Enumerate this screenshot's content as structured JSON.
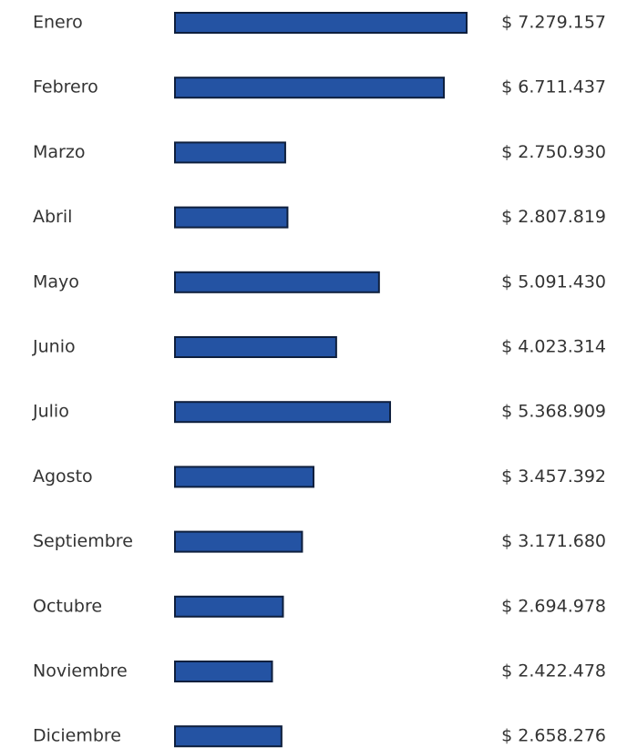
{
  "chart_data": {
    "type": "bar",
    "orientation": "horizontal",
    "color": "#2453a3",
    "categories": [
      "Enero",
      "Febrero",
      "Marzo",
      "Abril",
      "Mayo",
      "Junio",
      "Julio",
      "Agosto",
      "Septiembre",
      "Octubre",
      "Noviembre",
      "Diciembre"
    ],
    "values": [
      7279157,
      6711437,
      2750930,
      2807819,
      5091430,
      4023314,
      5368909,
      3457392,
      3171680,
      2694978,
      2422478,
      2658276
    ],
    "value_labels": [
      "$ 7.279.157",
      "$ 6.711.437",
      "$ 2.750.930",
      "$ 2.807.819",
      "$ 5.091.430",
      "$ 4.023.314",
      "$ 5.368.909",
      "$ 3.457.392",
      "$ 3.171.680",
      "$ 2.694.978",
      "$ 2.422.478",
      "$ 2.658.276"
    ]
  }
}
